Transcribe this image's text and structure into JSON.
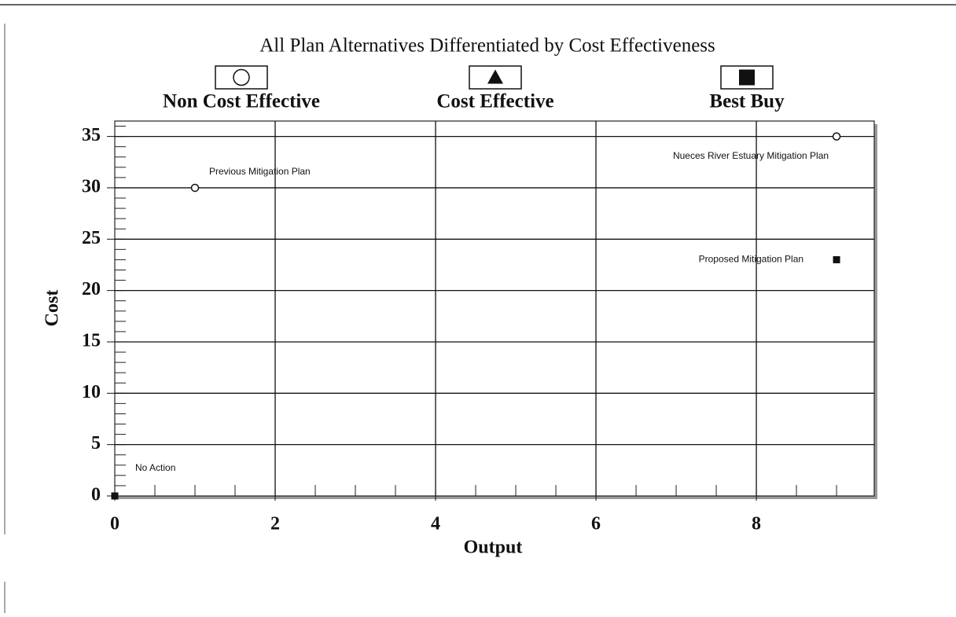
{
  "chart_data": {
    "type": "scatter",
    "title": "All Plan Alternatives Differentiated by Cost Effectiveness",
    "xlabel": "Output",
    "ylabel": "Cost",
    "series": [
      {
        "name": "Non Cost Effective",
        "marker": "circle",
        "color": "#111111",
        "x": [
          1,
          9
        ],
        "values": [
          30,
          35
        ],
        "point_labels": [
          "Previous Mitigation Plan",
          "Nueces River Estuary Mitigation Plan"
        ]
      },
      {
        "name": "Cost Effective",
        "marker": "triangle",
        "color": "#111111",
        "x": [],
        "values": [],
        "point_labels": []
      },
      {
        "name": "Best Buy",
        "marker": "square",
        "color": "#111111",
        "x": [
          0,
          9
        ],
        "values": [
          0,
          23
        ],
        "point_labels": [
          "No Action",
          "Proposed Mitigation Plan"
        ]
      }
    ],
    "xlim": [
      0,
      9.47
    ],
    "ylim": [
      0,
      36.5
    ],
    "xticks": [
      0,
      2,
      4,
      6,
      8
    ],
    "yticks": [
      0,
      5,
      10,
      15,
      20,
      25,
      30,
      35
    ],
    "minor_ticks": {
      "x": 0.5,
      "y": 1
    },
    "grid": true,
    "legend": "top"
  }
}
